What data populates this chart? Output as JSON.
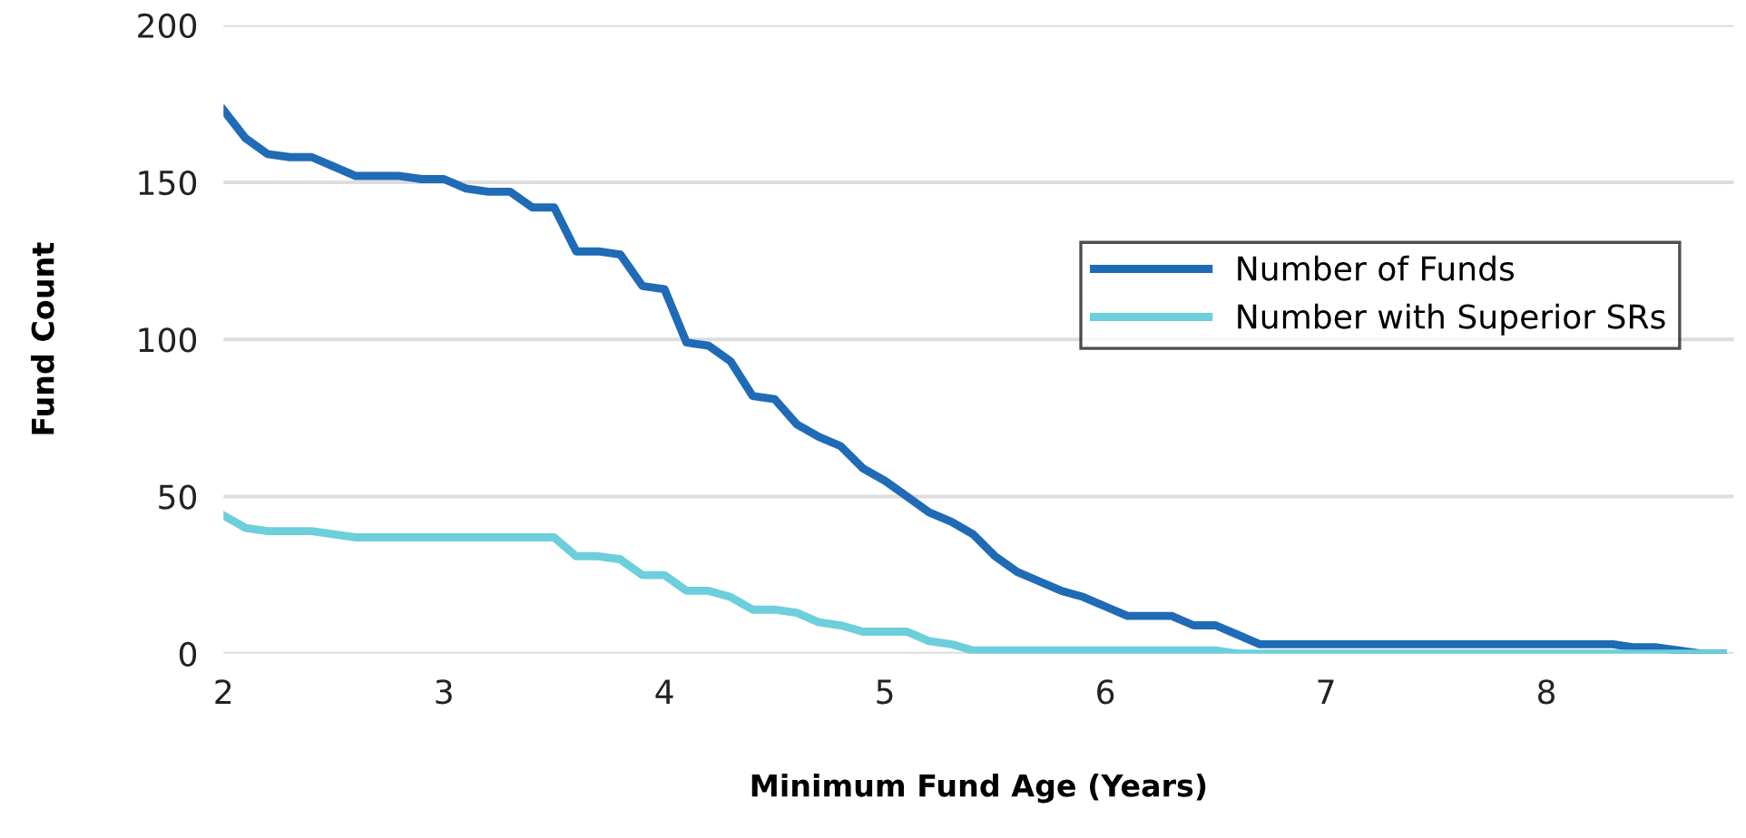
{
  "chart_data": {
    "type": "line",
    "xlabel": "Minimum Fund Age (Years)",
    "ylabel": "Fund Count",
    "x": [
      2.0,
      2.1,
      2.2,
      2.3,
      2.4,
      2.5,
      2.6,
      2.7,
      2.8,
      2.9,
      3.0,
      3.1,
      3.2,
      3.3,
      3.4,
      3.5,
      3.6,
      3.7,
      3.8,
      3.9,
      4.0,
      4.1,
      4.2,
      4.3,
      4.4,
      4.5,
      4.6,
      4.7,
      4.8,
      4.9,
      5.0,
      5.1,
      5.2,
      5.3,
      5.4,
      5.5,
      5.6,
      5.7,
      5.8,
      5.9,
      6.0,
      6.1,
      6.2,
      6.3,
      6.4,
      6.5,
      6.6,
      6.7,
      6.8,
      6.9,
      7.0,
      7.1,
      7.2,
      7.3,
      7.4,
      7.5,
      7.6,
      7.7,
      7.8,
      7.9,
      8.0,
      8.1,
      8.2,
      8.3,
      8.4,
      8.5,
      8.6,
      8.7,
      8.8
    ],
    "series": [
      {
        "name": "Number of Funds",
        "color": "#1f6bb5",
        "values": [
          173,
          164,
          159,
          158,
          158,
          155,
          152,
          152,
          152,
          151,
          151,
          148,
          147,
          147,
          142,
          142,
          128,
          128,
          127,
          117,
          116,
          99,
          98,
          93,
          82,
          81,
          73,
          69,
          66,
          59,
          55,
          50,
          45,
          42,
          38,
          31,
          26,
          23,
          20,
          18,
          15,
          12,
          12,
          12,
          9,
          9,
          6,
          3,
          3,
          3,
          3,
          3,
          3,
          3,
          3,
          3,
          3,
          3,
          3,
          3,
          3,
          3,
          3,
          3,
          2,
          2,
          1,
          0,
          0
        ]
      },
      {
        "name": "Number with Superior SRs",
        "color": "#6ccfdb",
        "values": [
          44,
          40,
          39,
          39,
          39,
          38,
          37,
          37,
          37,
          37,
          37,
          37,
          37,
          37,
          37,
          37,
          31,
          31,
          30,
          25,
          25,
          20,
          20,
          18,
          14,
          14,
          13,
          10,
          9,
          7,
          7,
          7,
          4,
          3,
          1,
          1,
          1,
          1,
          1,
          1,
          1,
          1,
          1,
          1,
          1,
          1,
          0,
          0,
          0,
          0,
          0,
          0,
          0,
          0,
          0,
          0,
          0,
          0,
          0,
          0,
          0,
          0,
          0,
          0,
          0,
          0,
          0,
          0,
          0
        ]
      }
    ],
    "xlim": [
      2,
      8.85
    ],
    "xticks": [
      2,
      3,
      4,
      5,
      6,
      7,
      8
    ],
    "ylim": [
      0,
      200
    ],
    "yticks": [
      0,
      50,
      100,
      150,
      200
    ],
    "grid": "y",
    "legend": "right",
    "marker": "none",
    "line_style": "solid"
  }
}
